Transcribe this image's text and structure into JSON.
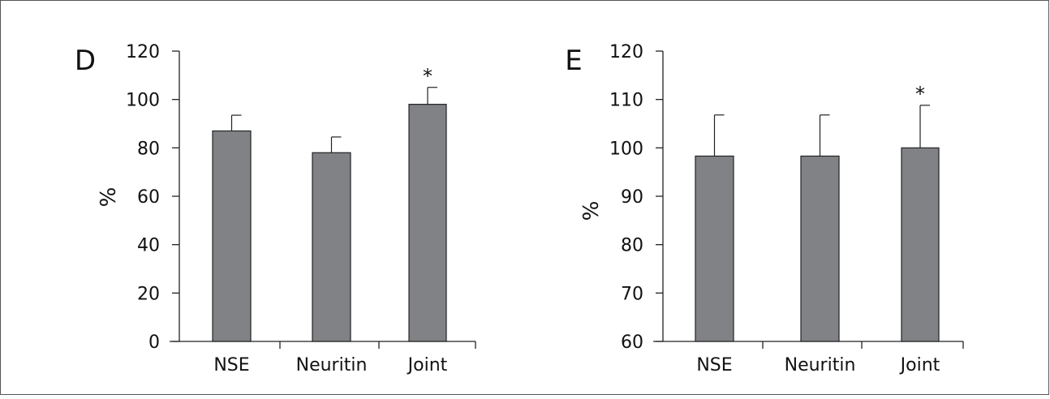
{
  "chart_data": [
    {
      "panel_label": "D",
      "type": "bar",
      "categories": [
        "NSE",
        "Neuritin",
        "Joint"
      ],
      "values": [
        87,
        78,
        98
      ],
      "error": [
        6.5,
        6.5,
        7
      ],
      "significance": [
        "",
        "",
        "*"
      ],
      "ylabel": "%",
      "ylim": [
        0,
        120
      ],
      "yticks": [
        "0",
        "20",
        "40",
        "60",
        "80",
        "100",
        "120"
      ],
      "grid": false,
      "bar_color": "#808285"
    },
    {
      "panel_label": "E",
      "type": "bar",
      "categories": [
        "NSE",
        "Neuritin",
        "Joint"
      ],
      "values": [
        98.3,
        98.3,
        100
      ],
      "error": [
        8.5,
        8.5,
        8.8
      ],
      "significance": [
        "",
        "",
        "*"
      ],
      "ylabel": "%",
      "ylim": [
        60,
        120
      ],
      "yticks": [
        "60",
        "70",
        "80",
        "90",
        "100",
        "110",
        "120"
      ],
      "grid": false,
      "bar_color": "#808285"
    }
  ]
}
